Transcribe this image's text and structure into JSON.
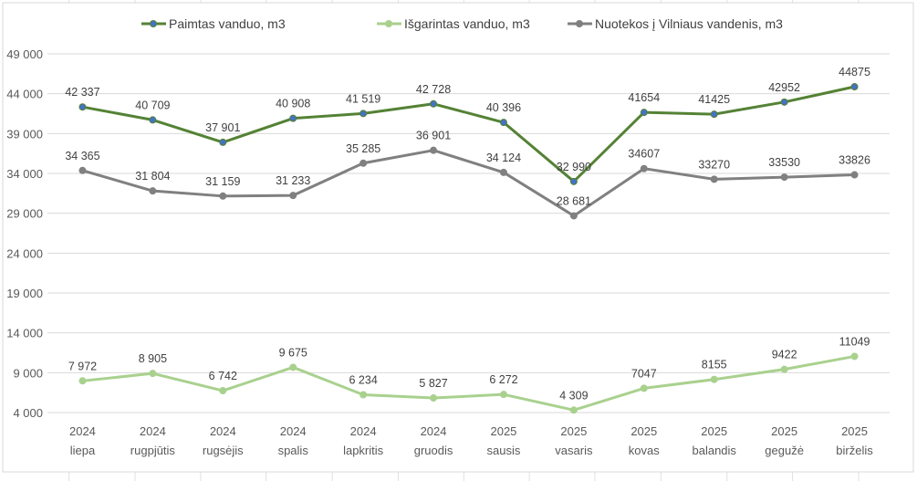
{
  "chart_data": {
    "type": "line",
    "title": "",
    "xlabel": "",
    "ylabel": "",
    "ylim": [
      4000,
      49000
    ],
    "yticks": [
      4000,
      9000,
      14000,
      19000,
      24000,
      29000,
      34000,
      39000,
      44000,
      49000
    ],
    "ytick_labels": [
      "4 000",
      "9 000",
      "14 000",
      "19 000",
      "24 000",
      "29 000",
      "34 000",
      "39 000",
      "44 000",
      "49 000"
    ],
    "grid": true,
    "legend_position": "top",
    "categories": [
      [
        "2024",
        "liepa"
      ],
      [
        "2024",
        "rugpjūtis"
      ],
      [
        "2024",
        "rugsėjis"
      ],
      [
        "2024",
        "spalis"
      ],
      [
        "2024",
        "lapkritis"
      ],
      [
        "2024",
        "gruodis"
      ],
      [
        "2025",
        "sausis"
      ],
      [
        "2025",
        "vasaris"
      ],
      [
        "2025",
        "kovas"
      ],
      [
        "2025",
        "balandis"
      ],
      [
        "2025",
        "gegužė"
      ],
      [
        "2025",
        "birželis"
      ]
    ],
    "series": [
      {
        "name": "Paimtas vanduo, m3",
        "color": "#548235",
        "marker": "#4472c4",
        "values": [
          42337,
          40709,
          37901,
          40908,
          41519,
          42728,
          40396,
          32990,
          41654,
          41425,
          42952,
          44875
        ],
        "labels": [
          "42 337",
          "40 709",
          "37 901",
          "40 908",
          "41 519",
          "42 728",
          "40 396",
          "32 990",
          "41654",
          "41425",
          "42952",
          "44875"
        ]
      },
      {
        "name": "Išgarintas vanduo, m3",
        "color": "#a9d18e",
        "marker": "#a9d18e",
        "values": [
          7972,
          8905,
          6742,
          9675,
          6234,
          5827,
          6272,
          4309,
          7047,
          8155,
          9422,
          11049
        ],
        "labels": [
          "7 972",
          "8 905",
          "6 742",
          "9 675",
          "6 234",
          "5 827",
          "6 272",
          "4 309",
          "7047",
          "8155",
          "9422",
          "11049"
        ]
      },
      {
        "name": "Nuotekos į Vilniaus vandenis, m3",
        "color": "#808080",
        "marker": "#808080",
        "values": [
          34365,
          31804,
          31159,
          31233,
          35285,
          36901,
          34124,
          28681,
          34607,
          33270,
          33530,
          33826
        ],
        "labels": [
          "34 365",
          "31 804",
          "31 159",
          "31 233",
          "35 285",
          "36 901",
          "34 124",
          "28 681",
          "34607",
          "33270",
          "33530",
          "33826"
        ]
      }
    ]
  }
}
